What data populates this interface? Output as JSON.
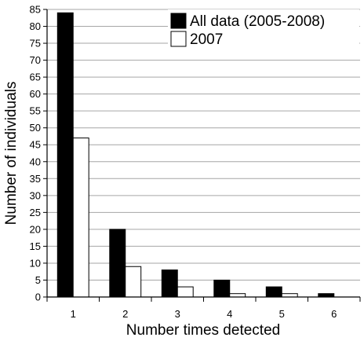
{
  "chart_data": {
    "type": "bar",
    "title": "",
    "xlabel": "Number times detected",
    "ylabel": "Number of individuals",
    "categories": [
      "1",
      "2",
      "3",
      "4",
      "5",
      "6"
    ],
    "series": [
      {
        "name": "All data (2005-2008)",
        "values": [
          84,
          20,
          8,
          5,
          3,
          1
        ],
        "color": "#000000"
      },
      {
        "name": "2007",
        "values": [
          47,
          9,
          3,
          1,
          1,
          0
        ],
        "color": "#ffffff"
      }
    ],
    "ylim": [
      0,
      85
    ],
    "yticks": [
      "0",
      "5",
      "10",
      "15",
      "20",
      "25",
      "30",
      "35",
      "40",
      "45",
      "50",
      "55",
      "60",
      "65",
      "70",
      "75",
      "80",
      "85"
    ],
    "grid": true,
    "legend_position": "top-right"
  }
}
